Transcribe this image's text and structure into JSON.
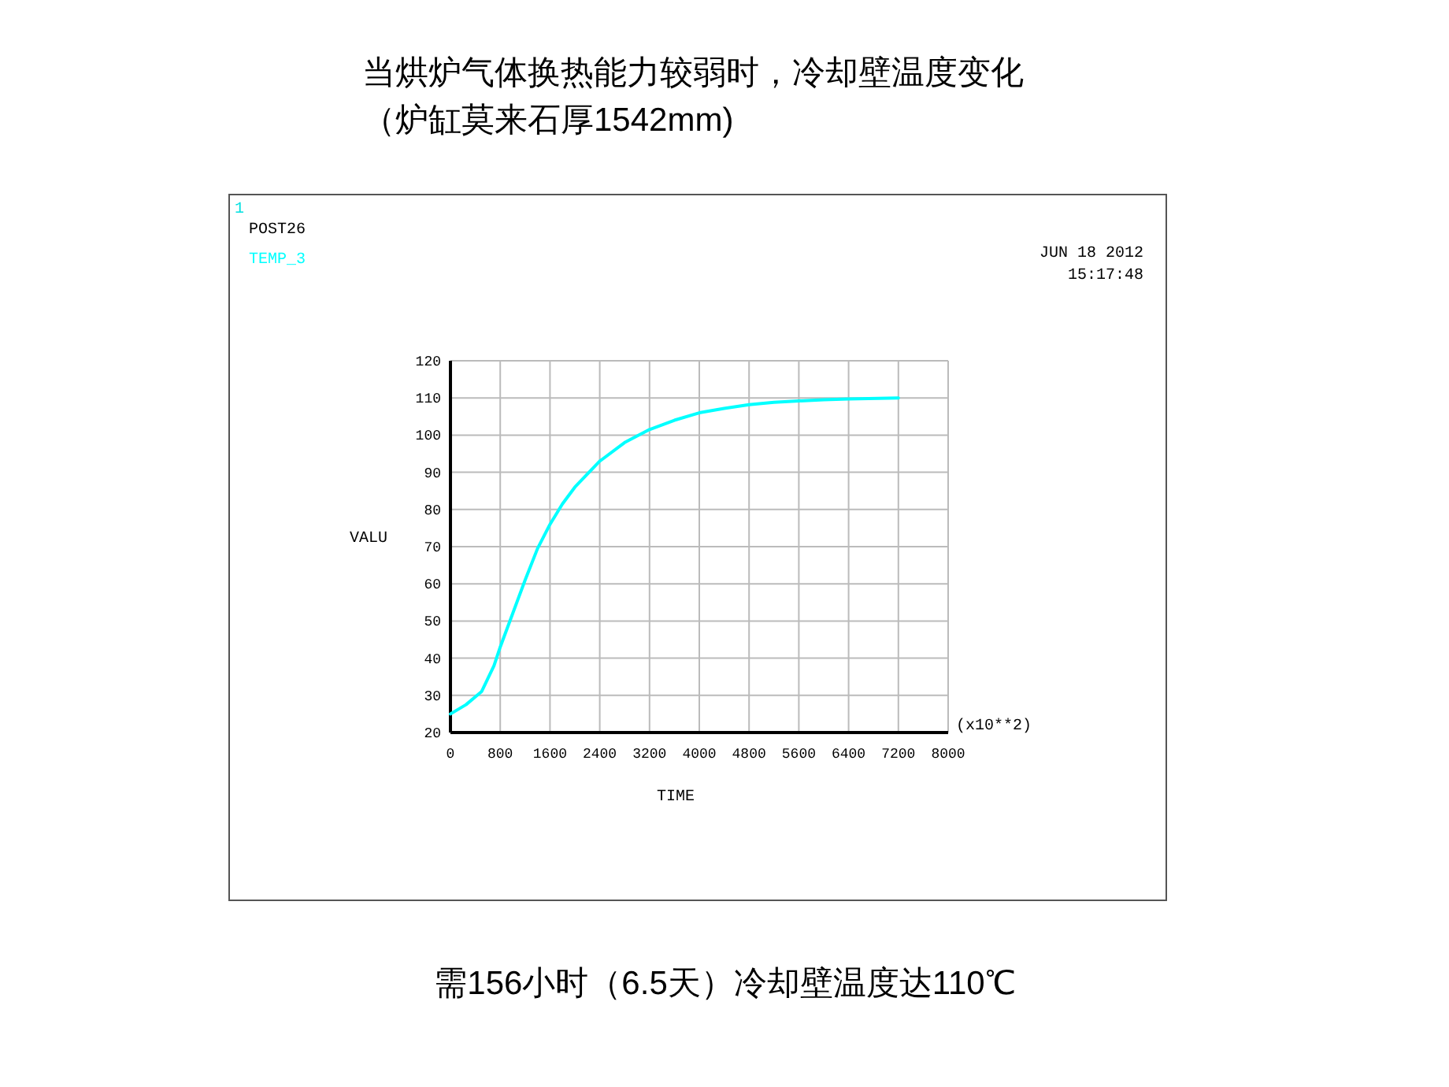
{
  "chart_data": {
    "type": "line",
    "title": "当烘炉气体换热能力较弱时，冷却壁温度变化（炉缸莫来石厚1542mm)",
    "xlabel": "TIME",
    "ylabel": "VALU",
    "annotations": [
      "1",
      "POST26",
      "JUN 18 2012",
      "15:17:48",
      "(x10**2)",
      "需156小时（6.5天）冷却壁温度达110℃"
    ],
    "x": [
      0,
      250,
      500,
      700,
      800,
      1000,
      1200,
      1400,
      1600,
      1800,
      2000,
      2400,
      2800,
      3200,
      3600,
      4000,
      4400,
      4800,
      5200,
      5600,
      6000,
      6400,
      7200
    ],
    "series": [
      {
        "name": "TEMP_3",
        "color": "#00ffff",
        "values": [
          25,
          27.5,
          31,
          38,
          43,
          52,
          61,
          69.5,
          76,
          81.5,
          86,
          93,
          98,
          101.5,
          104,
          106,
          107.2,
          108.2,
          108.8,
          109.2,
          109.5,
          109.7,
          110
        ]
      }
    ],
    "xlim": [
      0,
      8000
    ],
    "xticks": [
      0,
      800,
      1600,
      2400,
      3200,
      4000,
      4800,
      5600,
      6400,
      7200,
      8000
    ],
    "ylim": [
      20,
      120
    ],
    "yticks": [
      20,
      30,
      40,
      50,
      60,
      70,
      80,
      90,
      100,
      110,
      120
    ],
    "grid": true
  }
}
